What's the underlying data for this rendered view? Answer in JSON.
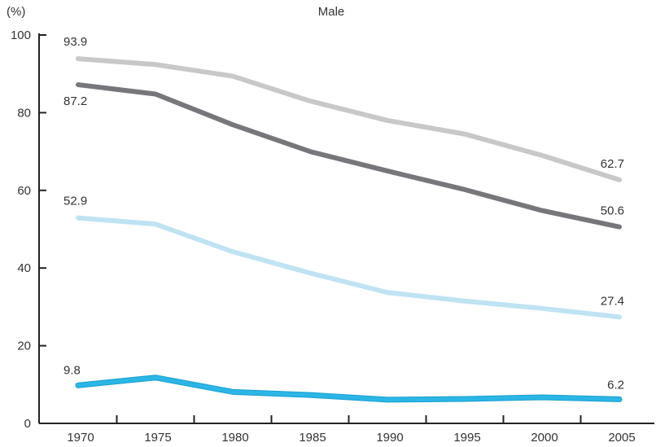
{
  "chart_data": {
    "type": "line",
    "title": "Male",
    "ylabel": "(%)",
    "xlabel": "",
    "categories": [
      "1970",
      "1975",
      "1980",
      "1985",
      "1990",
      "1995",
      "2000",
      "2005"
    ],
    "ylim": [
      0,
      100
    ],
    "yticks": [
      "0",
      "20",
      "40",
      "60",
      "80",
      "100"
    ],
    "grid": false,
    "series": [
      {
        "color": "#c8c8c8",
        "values": [
          93.9,
          92.4,
          89.4,
          83.0,
          78.0,
          74.5,
          69.0,
          62.7
        ],
        "labels": {
          "first": "93.9",
          "last": "62.7"
        }
      },
      {
        "color": "#77777b",
        "values": [
          87.2,
          84.8,
          76.9,
          70.0,
          65.0,
          60.2,
          54.8,
          50.6
        ],
        "labels": {
          "first": "87.2",
          "last": "50.6"
        }
      },
      {
        "color": "#bfe3f3",
        "values": [
          52.9,
          51.3,
          44.2,
          38.7,
          33.7,
          31.5,
          29.6,
          27.4
        ],
        "labels": {
          "first": "52.9",
          "last": "27.4"
        }
      },
      {
        "color": "#2bb6e6",
        "values": [
          9.8,
          11.8,
          8.1,
          7.3,
          6.1,
          6.3,
          6.7,
          6.2
        ],
        "labels": {
          "first": "9.8",
          "last": "6.2"
        }
      }
    ]
  }
}
